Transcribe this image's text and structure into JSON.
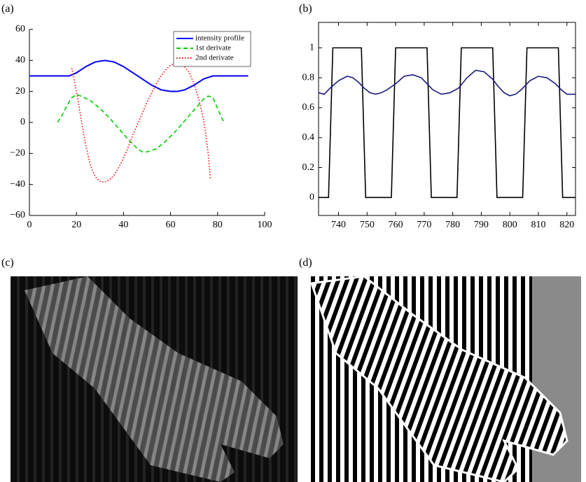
{
  "figure": {
    "panels": [
      "(a)",
      "(b)",
      "(c)",
      "(d)"
    ]
  },
  "chart_data": [
    {
      "type": "line",
      "box": false,
      "legend": "upper right",
      "xlim": [
        0,
        100
      ],
      "xticks": [
        0,
        20,
        40,
        60,
        80,
        100
      ],
      "ylim": [
        -60,
        60
      ],
      "yticks": [
        {
          "value": -60,
          "label": "−60"
        },
        {
          "value": -40,
          "label": "−40"
        },
        {
          "value": -20,
          "label": "−20"
        },
        0,
        20,
        40,
        60
      ],
      "series": [
        {
          "name": "intensity profile",
          "color": "#0000ff",
          "style": "solid",
          "x": [
            0,
            5,
            10,
            15,
            17,
            20,
            24,
            28,
            32,
            36,
            40,
            44,
            48,
            52,
            56,
            60,
            63,
            66,
            70,
            74,
            78,
            80,
            85,
            90,
            93
          ],
          "values": [
            30,
            30,
            30,
            30,
            30,
            32,
            36,
            39,
            40,
            39,
            36,
            32,
            28,
            24,
            21,
            20,
            20,
            21,
            24,
            28,
            30,
            30,
            30,
            30,
            30
          ]
        },
        {
          "name": "1st derivate",
          "color": "#00cc00",
          "style": "dashed",
          "x": [
            12,
            14,
            16,
            18,
            20,
            22,
            26,
            30,
            34,
            38,
            42,
            46,
            48,
            50,
            54,
            58,
            62,
            66,
            70,
            74,
            76,
            78,
            80,
            82,
            83
          ],
          "values": [
            0,
            5,
            11,
            16,
            18,
            17,
            14,
            9,
            3,
            -4,
            -11,
            -17,
            -19,
            -19,
            -17,
            -12,
            -6,
            1,
            8,
            15,
            17,
            16,
            9,
            2,
            0
          ]
        },
        {
          "name": "2nd derivate",
          "color": "#ff0000",
          "style": "dotted",
          "x": [
            18,
            20,
            22,
            24,
            26,
            28,
            30,
            32,
            34,
            36,
            38,
            40,
            42,
            44,
            46,
            48,
            50,
            52,
            54,
            56,
            58,
            60,
            62,
            64,
            66,
            68,
            70,
            72,
            74,
            75,
            76,
            77
          ],
          "values": [
            35,
            20,
            2,
            -15,
            -28,
            -35,
            -38,
            -38.5,
            -37,
            -34,
            -29,
            -23,
            -16,
            -8,
            -1,
            6,
            13,
            19,
            25,
            30,
            34,
            37,
            38,
            38,
            36,
            32,
            25,
            15,
            2,
            -8,
            -20,
            -37
          ]
        }
      ]
    },
    {
      "type": "line",
      "box": true,
      "xlim": [
        733,
        823
      ],
      "xticks": [
        740,
        750,
        760,
        770,
        780,
        790,
        800,
        810,
        820
      ],
      "ylim": [
        -0.12,
        1.17
      ],
      "yticks": [
        0,
        0.2,
        0.4,
        0.6,
        0.8,
        1
      ],
      "series": [
        {
          "color": "#000000",
          "style": "solid",
          "x": [
            733,
            736.5,
            738,
            748,
            749.5,
            758.5,
            760,
            771,
            772.5,
            781.5,
            783,
            794,
            795.5,
            804.5,
            806,
            817,
            818.5,
            823
          ],
          "values": [
            0,
            0,
            1,
            1,
            0,
            0,
            1,
            1,
            0,
            0,
            1,
            1,
            0,
            0,
            1,
            1,
            0,
            0
          ]
        },
        {
          "color": "#1a1a80",
          "style": "solid",
          "x": [
            733,
            735,
            737,
            740,
            743,
            745,
            747,
            749,
            751,
            753,
            755,
            757,
            760,
            763,
            766,
            769,
            771,
            773,
            776,
            779,
            782,
            785,
            788,
            791,
            794,
            796,
            798,
            800,
            802,
            804,
            807,
            810,
            813,
            816,
            818,
            820,
            823
          ],
          "values": [
            0.7,
            0.69,
            0.73,
            0.78,
            0.81,
            0.8,
            0.77,
            0.73,
            0.7,
            0.69,
            0.7,
            0.72,
            0.76,
            0.81,
            0.82,
            0.8,
            0.76,
            0.72,
            0.69,
            0.7,
            0.73,
            0.8,
            0.85,
            0.84,
            0.79,
            0.74,
            0.7,
            0.68,
            0.69,
            0.72,
            0.78,
            0.81,
            0.8,
            0.76,
            0.72,
            0.69,
            0.69
          ]
        }
      ]
    }
  ]
}
